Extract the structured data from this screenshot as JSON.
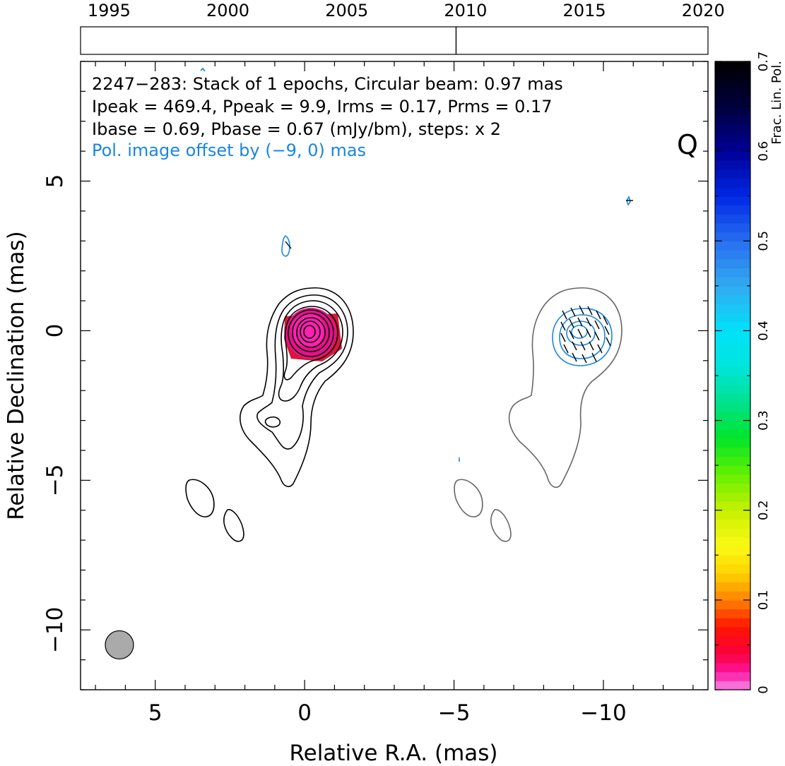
{
  "chart_data": {
    "type": "contour",
    "source": "2247−283",
    "text_lines": [
      "2247−283: Stack of 1 epochs, Circular beam: 0.97 mas",
      "Ipeak = 469.4, Ppeak = 9.9, Irms = 0.17, Prms = 0.17",
      "Ibase = 0.69, Pbase = 0.67 (mJy/bm), steps: x 2"
    ],
    "offset_note": "Pol. image offset by (−9, 0) mas",
    "band_label": "Q",
    "xlabel": "Relative R.A. (mas)",
    "ylabel": "Relative Declination (mas)",
    "xlim": [
      7.5,
      -13.5
    ],
    "ylim": [
      -12,
      9
    ],
    "x_ticks": [
      5,
      0,
      -5,
      -10
    ],
    "x_tick_labels": [
      "5",
      "0",
      "−5",
      "−10"
    ],
    "y_ticks": [
      5,
      0,
      -5,
      -10
    ],
    "y_tick_labels": [
      "5",
      "0",
      "−5",
      "−10"
    ],
    "beam": {
      "x": 6.2,
      "y": -10.5,
      "diameter_mas": 0.97
    },
    "timeline": {
      "year_range": [
        1993.8,
        2020.2
      ],
      "labels": [
        "1995",
        "2000",
        "2005",
        "2010",
        "2015",
        "2020"
      ],
      "label_years": [
        1995,
        2000,
        2005,
        2010,
        2015,
        2020
      ],
      "epoch_years": [
        2009.6
      ]
    },
    "colorbar": {
      "label": "Frac. Lin. Pol.",
      "range": [
        0,
        0.7
      ],
      "ticks": [
        0,
        0.1,
        0.2,
        0.3,
        0.4,
        0.5,
        0.6,
        0.7
      ],
      "tick_labels": [
        "0",
        "0.1",
        "0.2",
        "0.3",
        "0.4",
        "0.5",
        "0.6",
        "0.7"
      ]
    },
    "stokes_i_contours": {
      "levels_mJy": [
        0.69,
        1.38,
        2.76,
        5.52,
        11.04,
        22.08,
        44.16,
        88.32,
        176.64,
        353.28
      ],
      "core": {
        "x": 0.0,
        "y": 0.0
      }
    },
    "colors": {
      "i_contour": "#000000",
      "offset_contour": "#666666",
      "pol_contour": "#1a86e0",
      "text_highlight": "#1a86e0",
      "beam_fill": "#aaaaaa",
      "core_frac_pol": "#e8108a"
    }
  }
}
